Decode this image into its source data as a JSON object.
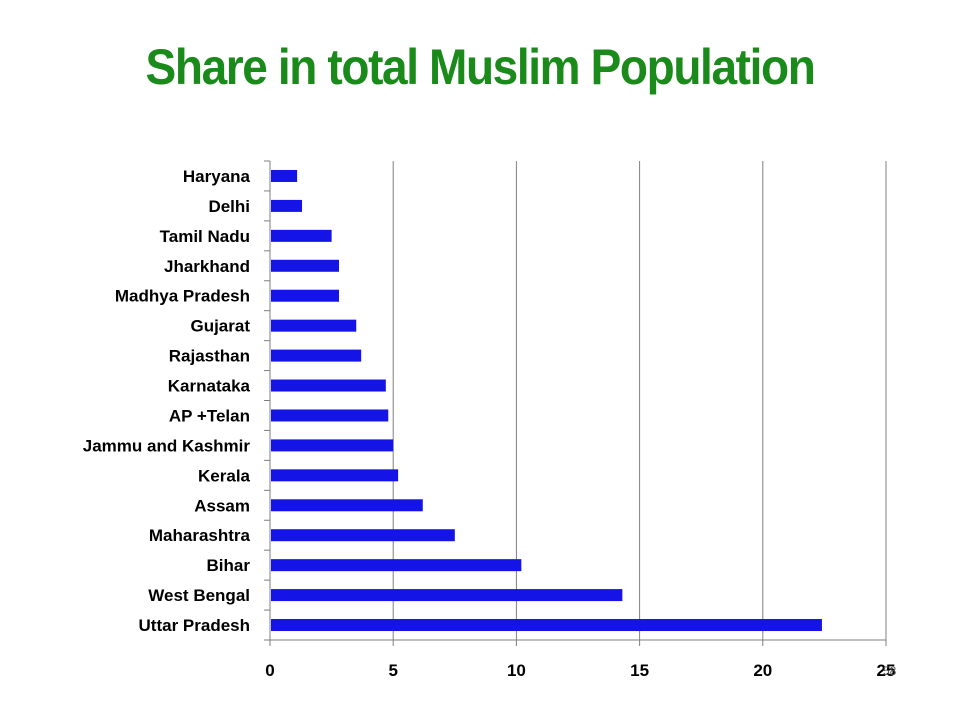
{
  "colors": {
    "title": "#1a8a1a",
    "bar": "#1414e6",
    "grid": "#7f7f7f",
    "axis": "#7f7f7f"
  },
  "page_number": "58",
  "chart_data": {
    "type": "bar",
    "orientation": "horizontal",
    "title": "Share in total Muslim Population",
    "xlabel": "",
    "ylabel": "",
    "xlim": [
      0,
      25
    ],
    "x_ticks": [
      0,
      5,
      10,
      15,
      20,
      25
    ],
    "grid": "vertical",
    "legend": "none",
    "categories": [
      "Uttar Pradesh",
      "West Bengal",
      "Bihar",
      "Maharashtra",
      "Assam",
      "Kerala",
      "Jammu and Kashmir",
      "AP +Telan",
      "Karnataka",
      "Rajasthan",
      "Gujarat",
      "Madhya Pradesh",
      "Jharkhand",
      "Tamil Nadu",
      "Delhi",
      "Haryana"
    ],
    "values": [
      22.4,
      14.3,
      10.2,
      7.5,
      6.2,
      5.2,
      5.0,
      4.8,
      4.7,
      3.7,
      3.5,
      2.8,
      2.8,
      2.5,
      1.3,
      1.1
    ]
  }
}
